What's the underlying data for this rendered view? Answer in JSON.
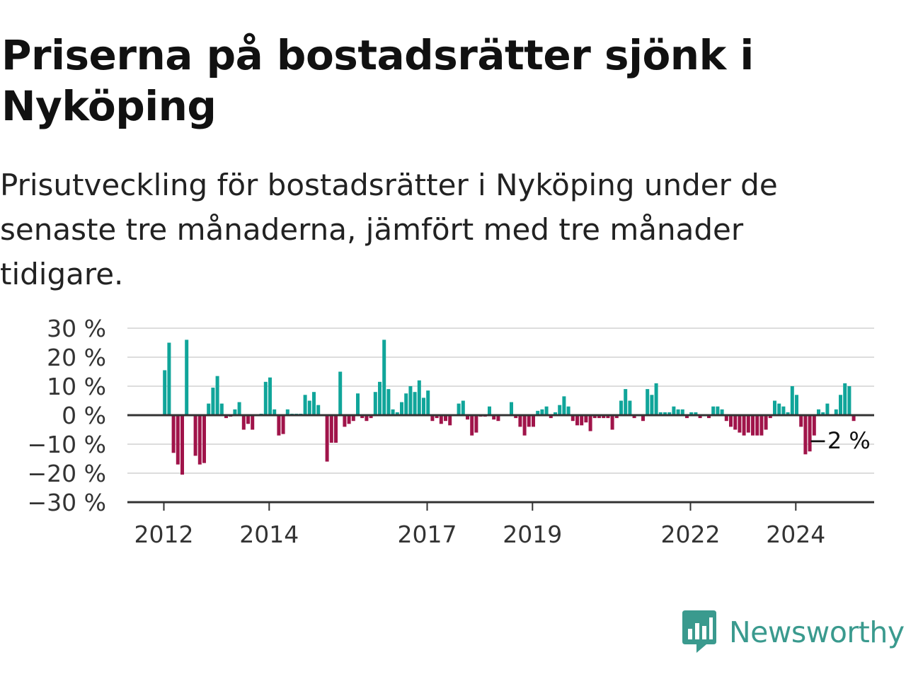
{
  "title": "Priserna på bostadsrätter sjönk i Nyköping",
  "subtitle": "Prisutveckling för bostadsrätter i Nyköping under de senaste tre månaderna, jämfört med tre månader tidigare.",
  "brand": {
    "name": "Newsworthy",
    "icon": "newsworthy-logo-icon",
    "color": "#3a9a8e"
  },
  "colors": {
    "positive": "#10a59a",
    "negative": "#a0144a",
    "grid": "#dddddd",
    "axis": "#333333"
  },
  "chart_data": {
    "type": "bar",
    "title": "Priserna på bostadsrätter sjönk i Nyköping",
    "xlabel": "",
    "ylabel": "",
    "ylim": [
      -30,
      30
    ],
    "yticks": [
      30,
      20,
      10,
      0,
      -10,
      -20,
      -30
    ],
    "ytick_labels": [
      "30 %",
      "20 %",
      "10 %",
      "0 %",
      "−10 %",
      "−20 %",
      "−30 %"
    ],
    "xticks": [
      "2012",
      "2014",
      "2017",
      "2019",
      "2022",
      "2024"
    ],
    "xtick_index": [
      0,
      24,
      60,
      84,
      120,
      144
    ],
    "grid": true,
    "end_label": "−2 %",
    "start": "2012-01",
    "frequency": "monthly",
    "series": [
      {
        "values": [
          15.5,
          25,
          -13,
          -17,
          -20.5,
          26,
          0,
          -14,
          -17,
          -16.5,
          4,
          9.5,
          13.5,
          4,
          -1,
          -0.5,
          2,
          4.5,
          -5,
          -3,
          -5,
          0,
          0.5,
          11.5,
          13,
          2,
          -7,
          -6.5,
          2,
          0.5,
          0.5,
          0.5,
          7,
          5,
          8,
          3.5,
          0,
          -16,
          -9.5,
          -9.5,
          15,
          -4,
          -3,
          -2,
          7.5,
          -1,
          -2,
          -1,
          8,
          11.5,
          26,
          9,
          2,
          1,
          4.5,
          7.5,
          10,
          8,
          12,
          6,
          8.5,
          -2,
          -1,
          -3,
          -2,
          -3.5,
          0,
          4,
          5,
          -1.5,
          -7,
          -6,
          -0.5,
          -0.5,
          3,
          -1.5,
          -2,
          0,
          0,
          4.5,
          -1,
          -4,
          -7,
          -4,
          -4,
          1.5,
          2,
          3,
          -1,
          1,
          3.5,
          6.5,
          3,
          -2,
          -3.5,
          -3.5,
          -2.5,
          -5.5,
          -1,
          -1,
          -1,
          -1,
          -5,
          -1,
          5,
          9,
          5,
          -1,
          0,
          -2,
          9,
          7,
          11,
          1,
          1,
          1,
          3,
          2,
          2,
          -1,
          1,
          1,
          -1,
          0,
          -1,
          3,
          3,
          2,
          -2,
          -4,
          -5,
          -6,
          -7,
          -6,
          -7,
          -7,
          -7,
          -5,
          -1,
          5,
          4,
          3,
          1,
          10,
          7,
          -4,
          -13.5,
          -12.5,
          -7,
          2,
          1,
          4,
          0,
          2,
          7,
          11,
          10,
          -2
        ]
      }
    ]
  }
}
